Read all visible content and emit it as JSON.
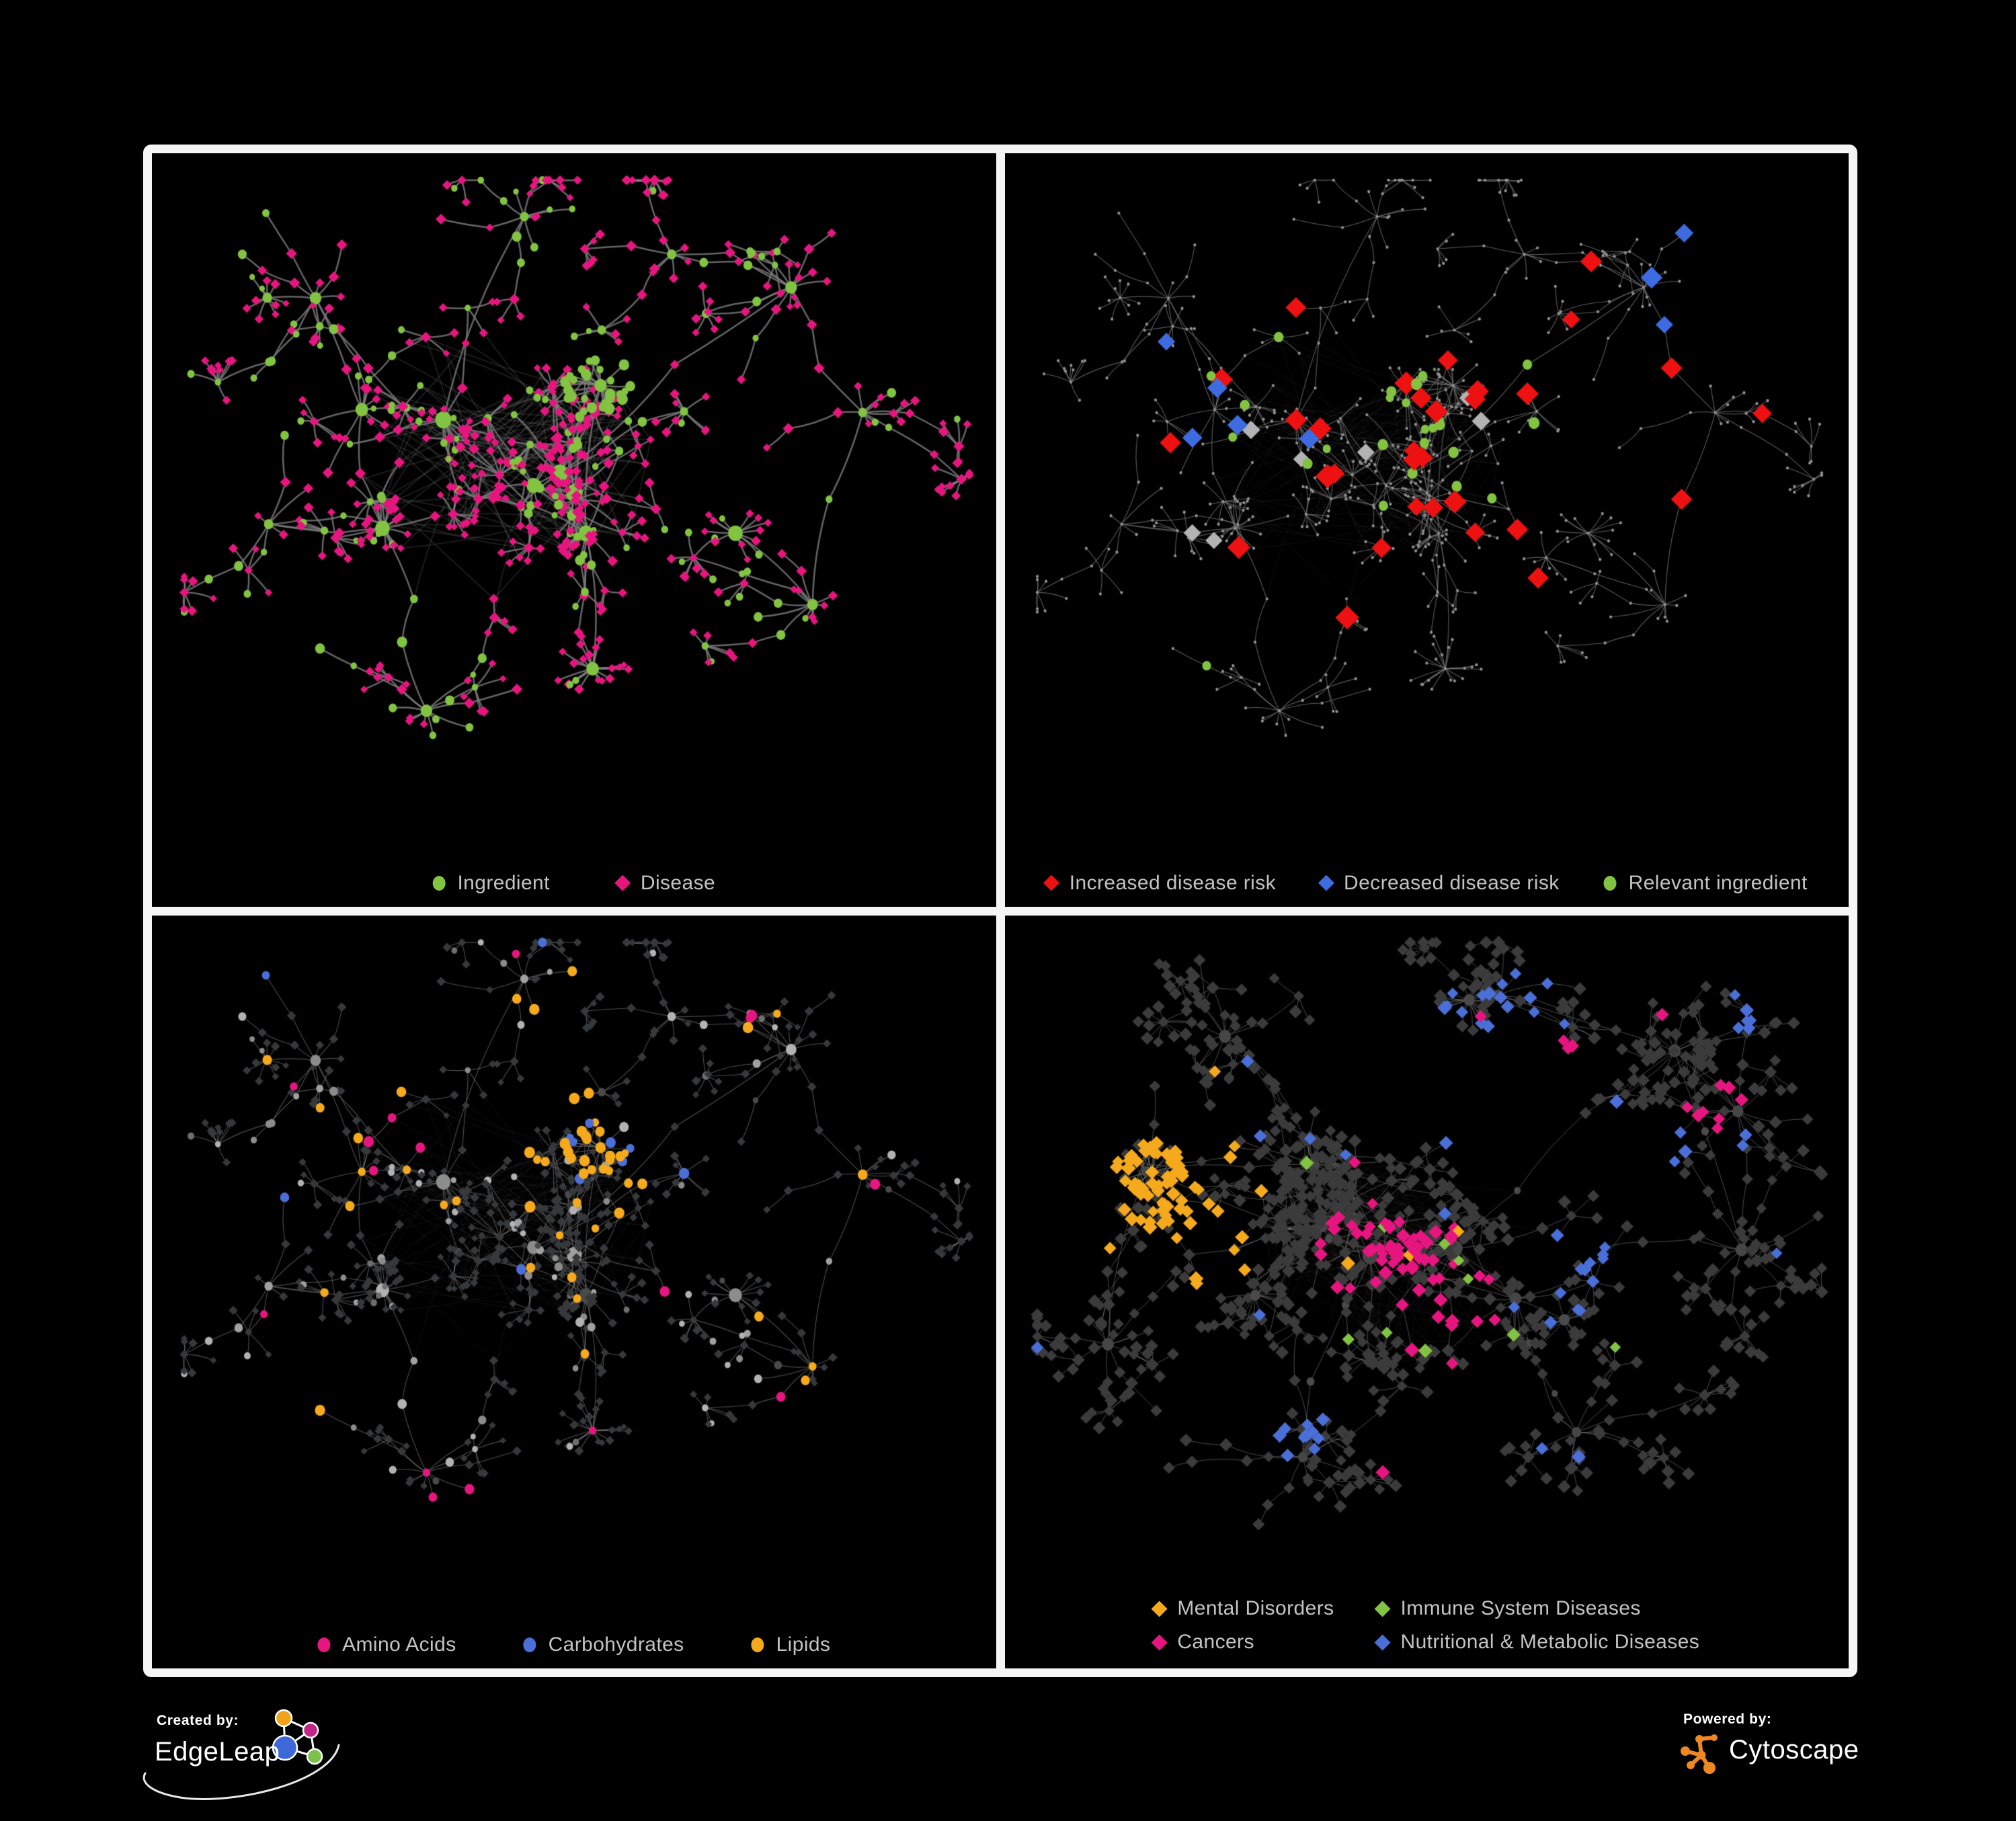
{
  "figure": {
    "background": "#000000",
    "frame_color": "#f5f5f5",
    "panel_background": "#000000",
    "legend_text_color": "#c3c3c3"
  },
  "footer": {
    "created_by": {
      "label": "Created by:",
      "brand": "EdgeLeap",
      "logo_colors": {
        "orange": "#F2A31B",
        "magenta": "#C22585",
        "blue": "#3E68D8",
        "green": "#7CC24A",
        "line": "#FFFFFF"
      }
    },
    "powered_by": {
      "label": "Powered by:",
      "brand": "Cytoscape",
      "icon_color": "#EE8822"
    }
  },
  "chart_data": [
    {
      "type": "network",
      "panel": "top-left",
      "description": "Ingredient-disease association network: green circular nodes are ingredients, pink diamond nodes are diseases, connected by grey curved edges; dense hub clusters centre-left with radiating tree branches and star-burst leaves.",
      "legend": [
        {
          "label": "Ingredient",
          "shape": "circle",
          "color": "#82C341"
        },
        {
          "label": "Disease",
          "shape": "diamond",
          "color": "#E7157F"
        }
      ],
      "style": {
        "edge_color": "#7E7E7E",
        "edge_width": 2.5,
        "edge_alpha": 0.8,
        "fog_alpha": 0.22
      },
      "composition": {
        "ingredient_nodes_approx": 280,
        "disease_nodes_approx": 430
      }
    },
    {
      "type": "network",
      "panel": "top-right",
      "description": "Same network dimmed to small grey dots; overlaid large red diamonds mark increased disease risk, blue diamonds decreased disease risk, silver-grey diamonds neutral findings, green circles relevant ingredients; highlights concentrated in the central core.",
      "legend": [
        {
          "label": "Increased disease risk",
          "shape": "diamond",
          "color": "#EE1111"
        },
        {
          "label": "Decreased disease risk",
          "shape": "diamond",
          "color": "#3E6CE0"
        },
        {
          "label": "Relevant ingredient",
          "shape": "circle",
          "color": "#82C341"
        }
      ],
      "style": {
        "edge_color": "#7A7A7A",
        "edge_width": 1.1,
        "edge_alpha": 0.75,
        "fog_alpha": 0.14,
        "base_node_color": "#8F8F8F",
        "base_node_radius": 2.3,
        "neutral_diamond_color": "#B3B3B3"
      },
      "composition": {
        "increased_risk_approx": 32,
        "decreased_risk_approx": 8,
        "neutral_grey_diamonds_approx": 8,
        "relevant_ingredients_approx": 27,
        "background_nodes_approx": 650
      }
    },
    {
      "type": "network",
      "panel": "bottom-left",
      "description": "Same network with ingredients as grey circles and diseases as dark grey diamonds; ingredient circles coloured by compound class: amber lipids (dense knot upper middle plus scatter), blue carbohydrates (mostly in the knot), pink amino acids scattered around the periphery.",
      "legend": [
        {
          "label": "Amino Acids",
          "shape": "circle",
          "color": "#E7157F"
        },
        {
          "label": "Carbohydrates",
          "shape": "circle",
          "color": "#4A6FD8"
        },
        {
          "label": "Lipids",
          "shape": "circle",
          "color": "#F5A91C"
        }
      ],
      "style": {
        "edge_color": "#9B9B9B",
        "edge_width": 1.1,
        "edge_alpha": 0.5,
        "fog_alpha": 0.12,
        "grey_circle_color": "#B0B0B0",
        "dark_diamond_color": "#36393C"
      },
      "composition": {
        "amino_acid_nodes_approx": 18,
        "carbohydrate_nodes_approx": 13,
        "lipid_nodes_approx": 66,
        "grey_ingredient_nodes_approx": 180,
        "disease_nodes_approx": 430
      }
    },
    {
      "type": "network",
      "panel": "bottom-right",
      "description": "Disease category network of dark grey diamonds with grey circle hubs; coloured diamonds mark categories: amber mental disorders forming a dense left cluster, pink cancers through the central band and a small far-right cluster, blue nutritional and metabolic diseases across the upper and right regions, green immune system diseases sparsely scattered.",
      "legend": [
        {
          "label": "Mental Disorders",
          "shape": "diamond",
          "color": "#F5A91C"
        },
        {
          "label": "Immune System Diseases",
          "shape": "diamond",
          "color": "#82C341"
        },
        {
          "label": "Cancers",
          "shape": "diamond",
          "color": "#E7157F"
        },
        {
          "label": "Nutritional & Metabolic Diseases",
          "shape": "diamond",
          "color": "#4A6FD8"
        }
      ],
      "legend_layout": "two-column",
      "style": {
        "edge_color": "#9C9C9C",
        "edge_width": 0.9,
        "edge_alpha": 0.55,
        "fog_alpha": 0.1,
        "dark_diamond_color": "#3B3B3B",
        "hub_circle_color": "#464646"
      },
      "composition": {
        "mental_disorders_approx": 85,
        "cancers_approx": 58,
        "nutritional_metabolic_approx": 72,
        "immune_system_approx": 10,
        "uncategorised_approx": 520
      }
    }
  ]
}
